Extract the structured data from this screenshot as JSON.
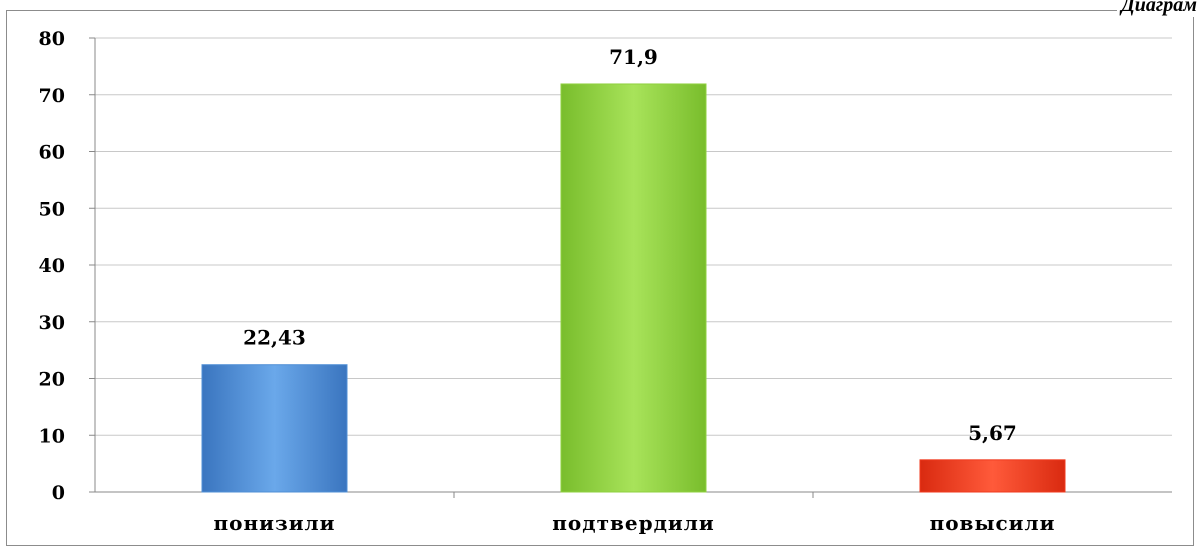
{
  "corner_label": "Диаграм",
  "chart_data": {
    "type": "bar",
    "categories": [
      "понизили",
      "подтвердили",
      "повысили"
    ],
    "values": [
      22.43,
      71.9,
      5.67
    ],
    "value_labels": [
      "22,43",
      "71,9",
      "5,67"
    ],
    "ylim": [
      0,
      80
    ],
    "yticks": [
      0,
      10,
      20,
      30,
      40,
      50,
      60,
      70,
      80
    ],
    "grid": true,
    "colors": [
      "#4f8fd6",
      "#8fd13f",
      "#f03a1e"
    ],
    "title": "",
    "xlabel": "",
    "ylabel": ""
  }
}
